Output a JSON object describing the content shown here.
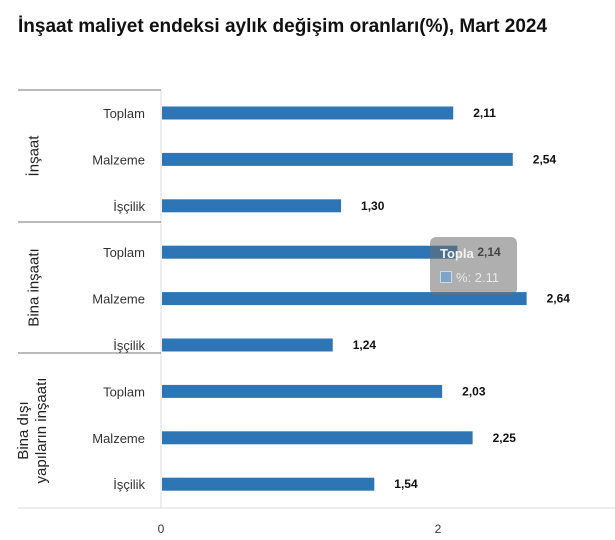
{
  "title": "İnşaat maliyet endeksi aylık değişim oranları(%), Mart 2024",
  "colors": {
    "bar": "#2e75b6",
    "axis": "#777777",
    "grid": "#dcdcdc"
  },
  "tooltip": {
    "title": "Topla",
    "label": "%: 2.11"
  },
  "chart_data": {
    "type": "bar",
    "orientation": "horizontal",
    "xlim": [
      0,
      2.9
    ],
    "xticks": [
      0,
      2
    ],
    "groups": [
      {
        "name": "İnşaat",
        "categories": [
          "Toplam",
          "Malzeme",
          "İşçilik"
        ],
        "values": [
          2.11,
          2.54,
          1.3
        ],
        "labels": [
          "2,11",
          "2,54",
          "1,30"
        ]
      },
      {
        "name": "Bina inşaatı",
        "categories": [
          "Toplam",
          "Malzeme",
          "İşçilik"
        ],
        "values": [
          2.14,
          2.64,
          1.24
        ],
        "labels": [
          "2,14",
          "2,64",
          "1,24"
        ]
      },
      {
        "name_lines": [
          "Bina dışı",
          "yapıların inşaatı"
        ],
        "categories": [
          "Toplam",
          "Malzeme",
          "İşçilik"
        ],
        "values": [
          2.03,
          2.25,
          1.54
        ],
        "labels": [
          "2,03",
          "2,25",
          "1,54"
        ]
      }
    ]
  }
}
